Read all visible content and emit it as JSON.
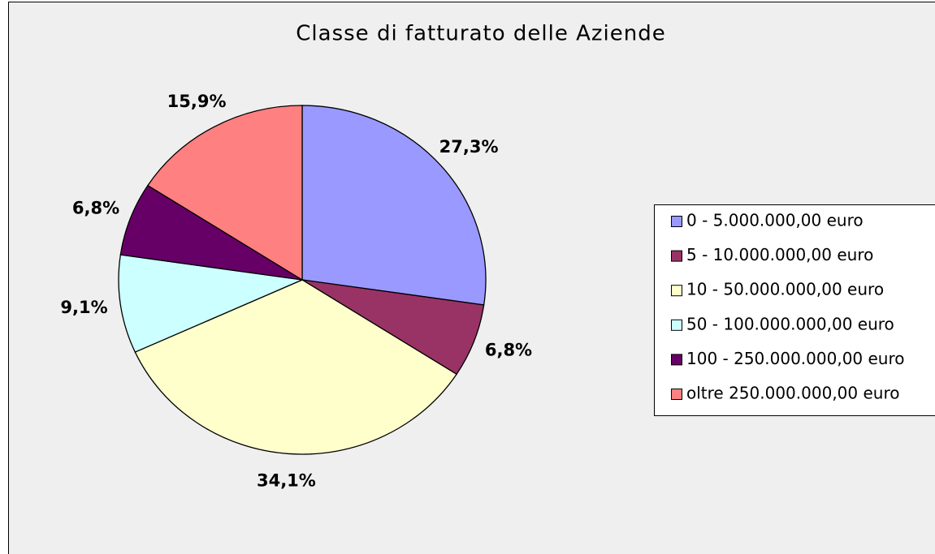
{
  "chart_data": {
    "type": "pie",
    "title": "Classe di fatturato delle Aziende",
    "categories": [
      "0 - 5.000.000,00 euro",
      "5 - 10.000.000,00 euro",
      "10 - 50.000.000,00 euro",
      "50 - 100.000.000,00 euro",
      "100 - 250.000.000,00 euro",
      "oltre 250.000.000,00 euro"
    ],
    "values": [
      27.3,
      6.8,
      34.1,
      9.1,
      6.8,
      15.9
    ],
    "value_labels": [
      "27,3%",
      "6,8%",
      "34,1%",
      "9,1%",
      "6,8%",
      "15,9%"
    ],
    "colors": [
      "#9999ff",
      "#993366",
      "#ffffcc",
      "#ccffff",
      "#660066",
      "#ff8080"
    ],
    "legend": "right"
  }
}
